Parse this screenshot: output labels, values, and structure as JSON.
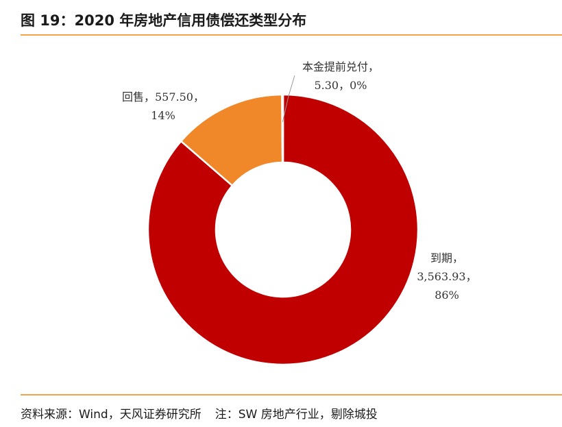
{
  "title": "图 19：2020 年房地产信用债偿还类型分布",
  "source": "资料来源：Wind，天风证券研究所",
  "note": "注：SW 房地产行业，剔除城投",
  "chart_data": {
    "type": "pie",
    "subtype": "donut",
    "title": "图 19：2020 年房地产信用债偿还类型分布",
    "slices": [
      {
        "category": "到期",
        "value": 3563.93,
        "pct": 86,
        "value_label": "3,563.93",
        "pct_label": "86%",
        "color": "#c00000"
      },
      {
        "category": "回售",
        "value": 557.5,
        "pct": 14,
        "value_label": "557.50",
        "pct_label": "14%",
        "color": "#f0882a"
      },
      {
        "category": "本金提前兑付",
        "value": 5.3,
        "pct": 0,
        "value_label": "5.30",
        "pct_label": "0%",
        "color": "#808080"
      }
    ],
    "legend": "none"
  }
}
